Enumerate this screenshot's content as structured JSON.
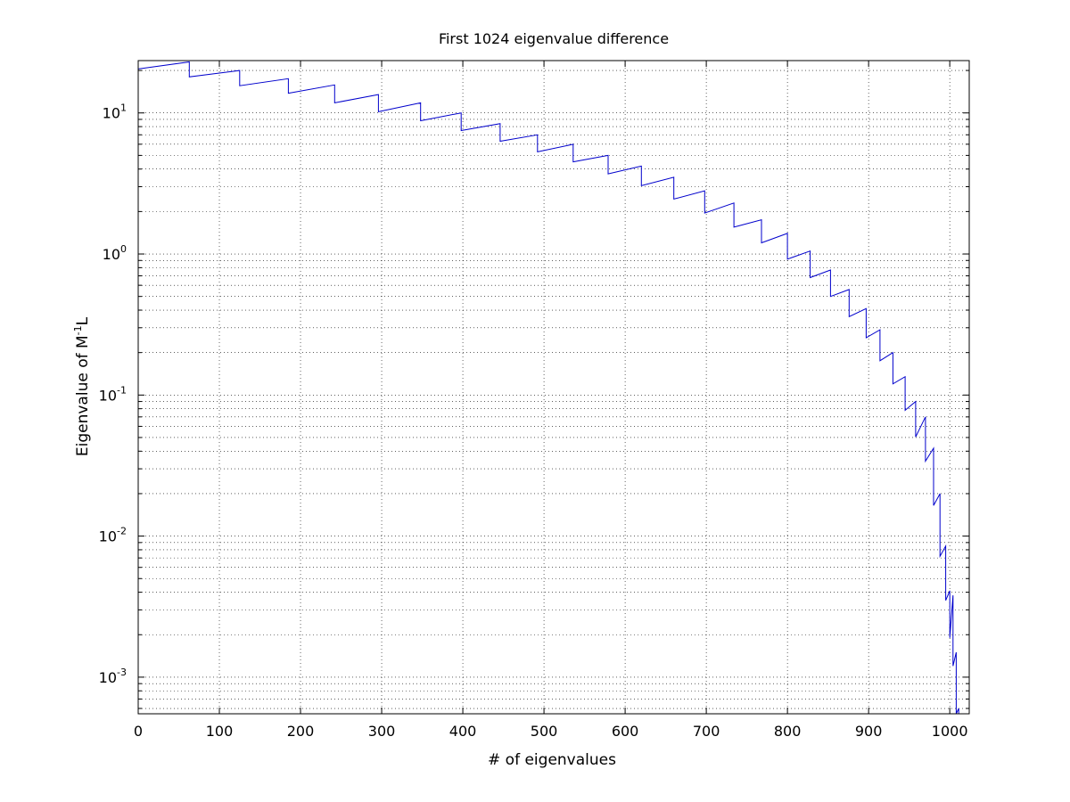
{
  "chart_data": {
    "type": "line",
    "title": "First 1024 eigenvalue difference",
    "xlabel": "# of eigenvalues",
    "ylabel_parts": {
      "base": "Eigenvalue of M",
      "sup": "-1",
      "tail": "L"
    },
    "xlim": [
      0,
      1024
    ],
    "ylim": [
      0.00055,
      23.5
    ],
    "yscale": "log",
    "grid": true,
    "x_ticks": [
      0,
      100,
      200,
      300,
      400,
      500,
      600,
      700,
      800,
      900,
      1000
    ],
    "x_tick_labels": [
      "0",
      "100",
      "200",
      "300",
      "400",
      "500",
      "600",
      "700",
      "800",
      "900",
      "1000"
    ],
    "y_tick_labels": [
      {
        "value": 0.001,
        "base": "10",
        "exp": "-3"
      },
      {
        "value": 0.01,
        "base": "10",
        "exp": "-2"
      },
      {
        "value": 0.1,
        "base": "10",
        "exp": "-1"
      },
      {
        "value": 1,
        "base": "10",
        "exp": "0"
      },
      {
        "value": 10,
        "base": "10",
        "exp": "1"
      }
    ],
    "line_color": "#0000cc",
    "series": [
      {
        "x": [
          0,
          63,
          63,
          125,
          125,
          185,
          185,
          242,
          242,
          296,
          296,
          348,
          348,
          398,
          398,
          446,
          446,
          492,
          492,
          536,
          536,
          579,
          579,
          620,
          620,
          660,
          660,
          698,
          698,
          734,
          734,
          768,
          768,
          800,
          800,
          828,
          828,
          853,
          853,
          876,
          876,
          897,
          897,
          914,
          914,
          930,
          930,
          945,
          945,
          958,
          958,
          970,
          970,
          980,
          980,
          988,
          988,
          995,
          995,
          1000,
          1000,
          1004,
          1004,
          1008,
          1008,
          1011,
          1011,
          1013,
          1013,
          1015,
          1015,
          1016,
          1016
        ],
        "y": [
          20.5,
          23.0,
          18.0,
          20.0,
          15.6,
          17.5,
          13.8,
          15.8,
          11.8,
          13.5,
          10.2,
          11.8,
          8.8,
          10.0,
          7.5,
          8.4,
          6.3,
          7.0,
          5.3,
          6.0,
          4.5,
          5.0,
          3.7,
          4.2,
          3.05,
          3.5,
          2.45,
          2.8,
          1.95,
          2.3,
          1.55,
          1.75,
          1.2,
          1.4,
          0.92,
          1.05,
          0.68,
          0.77,
          0.5,
          0.56,
          0.36,
          0.41,
          0.255,
          0.29,
          0.175,
          0.2,
          0.12,
          0.135,
          0.078,
          0.09,
          0.0505,
          0.07,
          0.034,
          0.042,
          0.0165,
          0.02,
          0.0072,
          0.0085,
          0.0035,
          0.0041,
          0.0019,
          0.0038,
          0.0012,
          0.0015,
          0.00055,
          0.0006,
          0.00055,
          0.00055,
          0.00055,
          0.00055,
          0.00055,
          0.00055,
          0.00055
        ]
      }
    ]
  }
}
